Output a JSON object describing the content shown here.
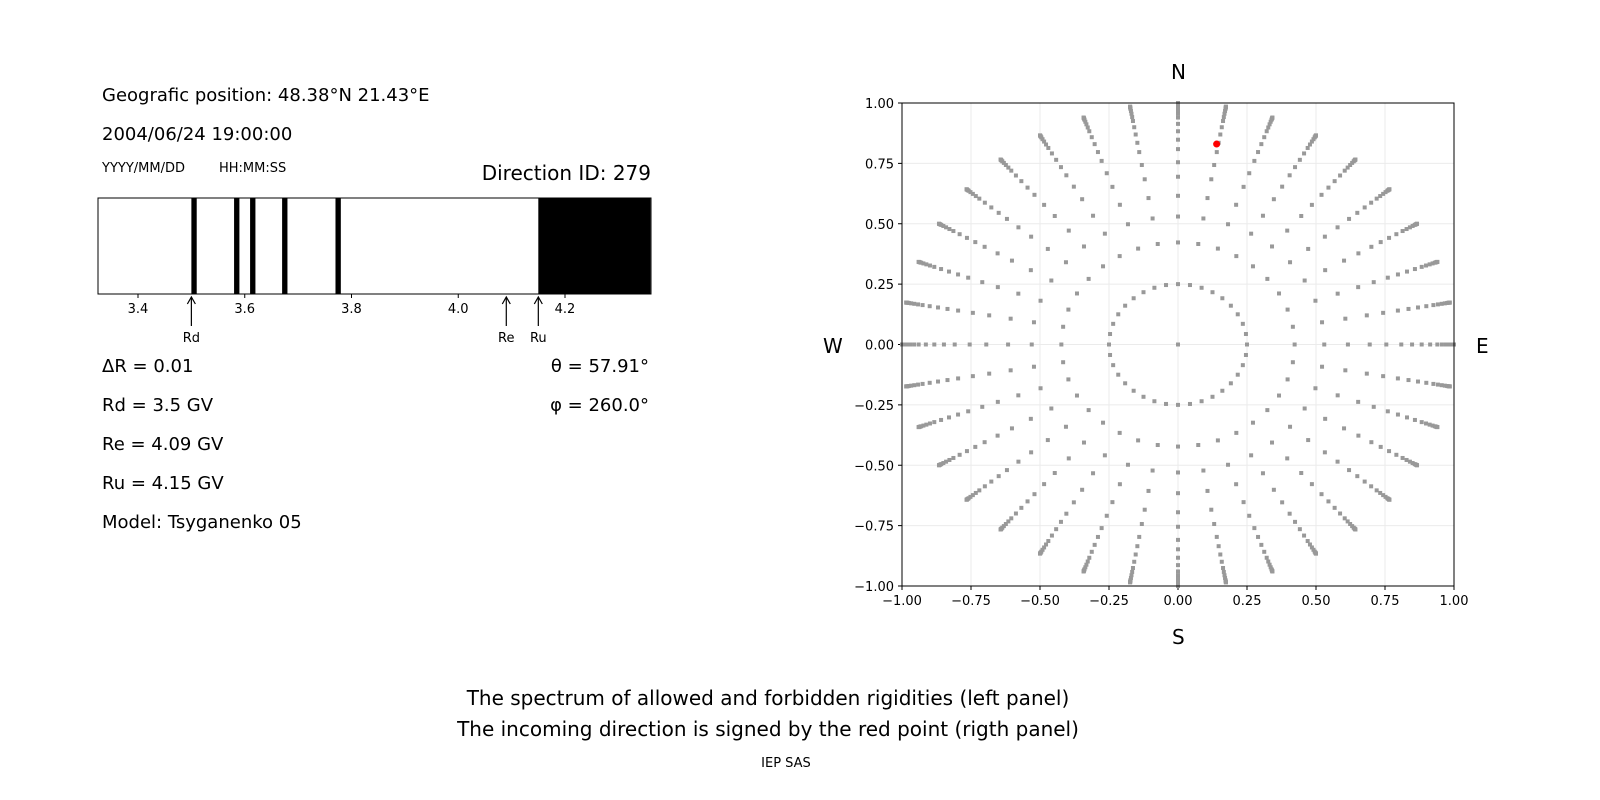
{
  "left_panel": {
    "geo_position": "Geografic position: 48.38°N 21.43°E",
    "datetime": "2004/06/24 19:00:00",
    "date_format_label": "YYYY/MM/DD",
    "time_format_label": "HH:MM:SS",
    "direction_id": "Direction ID: 279",
    "delta_r": "ΔR = 0.01",
    "rd": "Rd = 3.5 GV",
    "re": "Re = 4.09 GV",
    "ru": "Ru = 4.15 GV",
    "model": "Model: Tsyganenko 05",
    "theta": "θ = 57.91°",
    "phi": "φ = 260.0°"
  },
  "right_panel": {
    "north": "N",
    "south": "S",
    "west": "W",
    "east": "E"
  },
  "caption": {
    "line1": "The spectrum of allowed and forbidden rigidities (left panel)",
    "line2": "The incoming direction is signed by the red point (rigth panel)",
    "credit": "IEP SAS"
  },
  "chart_data": [
    {
      "type": "bar",
      "xlim": [
        3.325,
        4.36
      ],
      "xticks": [
        "3.4",
        "3.6",
        "3.8",
        "4.0",
        "4.2"
      ],
      "bin_width": 0.01,
      "forbidden_bands": [
        [
          3.5,
          3.51
        ],
        [
          3.58,
          3.59
        ],
        [
          3.61,
          3.62
        ],
        [
          3.67,
          3.68
        ],
        [
          3.77,
          3.78
        ],
        [
          4.15,
          4.36
        ]
      ],
      "forbidden_color": "#000000",
      "allowed_color": "#ffffff",
      "markers": [
        {
          "label": "Rd",
          "value": 3.5
        },
        {
          "label": "Re",
          "value": 4.09
        },
        {
          "label": "Ru",
          "value": 4.15
        }
      ]
    },
    {
      "type": "scatter",
      "xlim": [
        -1,
        1
      ],
      "ylim": [
        -1,
        1
      ],
      "xticks": [
        "−1.00",
        "−0.75",
        "−0.50",
        "−0.25",
        "0.00",
        "0.25",
        "0.50",
        "0.75",
        "1.00"
      ],
      "yticks": [
        "−1.00",
        "−0.75",
        "−0.50",
        "−0.25",
        "0.00",
        "0.25",
        "0.50",
        "0.75",
        "1.00"
      ],
      "grid": true,
      "grid_points": {
        "center": [
          0,
          0
        ],
        "inner_ring_radius": 0.25,
        "azimuth_step_deg": 10,
        "zenith_angles_deg": [
          25,
          32,
          38,
          44,
          49,
          54,
          58,
          62,
          66,
          70,
          73,
          76,
          79,
          82,
          84,
          86,
          88,
          90
        ],
        "color": "#999999"
      },
      "highlight_point": {
        "x": 0.14,
        "y": 0.83,
        "color": "#ff0000"
      }
    }
  ]
}
